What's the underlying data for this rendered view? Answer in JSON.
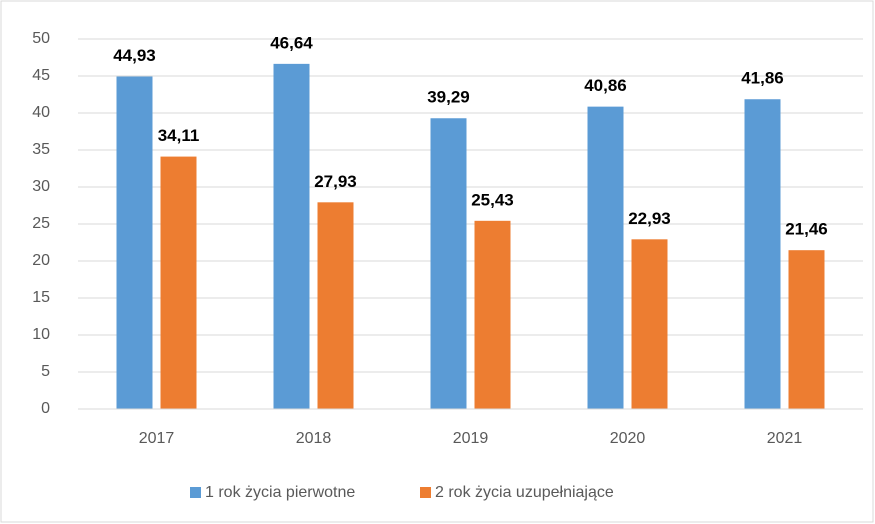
{
  "chart_data": {
    "type": "bar",
    "categories": [
      "2017",
      "2018",
      "2019",
      "2020",
      "2021"
    ],
    "series": [
      {
        "name": "1 rok życia pierwotne",
        "color": "#5b9bd5",
        "values": [
          44.93,
          46.64,
          39.29,
          40.86,
          41.86
        ],
        "value_labels": [
          "44,93",
          "46,64",
          "39,29",
          "40,86",
          "41,86"
        ]
      },
      {
        "name": "2 rok życia uzupełniające",
        "color": "#ed7d31",
        "values": [
          34.11,
          27.93,
          25.43,
          22.93,
          21.46
        ],
        "value_labels": [
          "34,11",
          "27,93",
          "25,43",
          "22,93",
          "21,46"
        ]
      }
    ],
    "ylim": [
      0,
      50
    ],
    "yticks": [
      0,
      5,
      10,
      15,
      20,
      25,
      30,
      35,
      40,
      45,
      50
    ],
    "grid": true,
    "legend": "bottom"
  }
}
